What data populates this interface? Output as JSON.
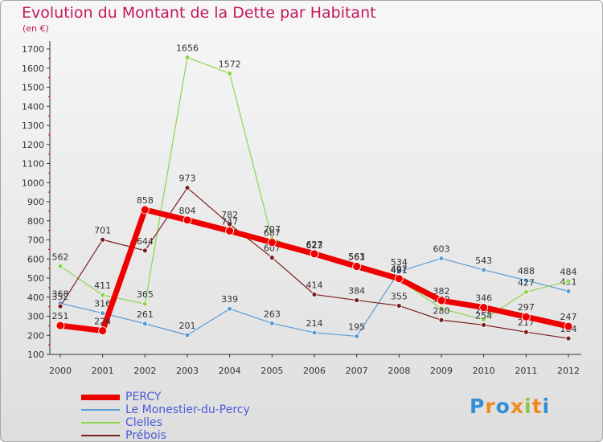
{
  "chart_data": {
    "type": "line",
    "title": "Evolution du Montant de la Dette par Habitant",
    "subtitle": "(en €)",
    "x": [
      "2000",
      "2001",
      "2002",
      "2003",
      "2004",
      "2005",
      "2006",
      "2007",
      "2008",
      "2009",
      "2010",
      "2011",
      "2012"
    ],
    "ylim": [
      100,
      1700
    ],
    "yticks": [
      100,
      200,
      300,
      400,
      500,
      600,
      700,
      800,
      900,
      1000,
      1100,
      1200,
      1300,
      1400,
      1500,
      1600,
      1700
    ],
    "grid": false,
    "legend_position": "bottom-left",
    "series": [
      {
        "name": "Le Monestier-du-Percy",
        "color": "#5b9bd5",
        "width": 1.2,
        "values": [
          368,
          316,
          261,
          201,
          339,
          263,
          214,
          195,
          534,
          603,
          543,
          488,
          431
        ]
      },
      {
        "name": "Clelles",
        "color": "#8cd64b",
        "width": 1.2,
        "values": [
          562,
          411,
          365,
          1656,
          1572,
          707,
          623,
          563,
          491,
          340,
          282,
          427,
          484
        ]
      },
      {
        "name": "Prébois",
        "color": "#7a1f1f",
        "width": 1.2,
        "values": [
          352,
          701,
          644,
          973,
          782,
          607,
          414,
          384,
          355,
          280,
          254,
          217,
          184
        ]
      },
      {
        "name": "PERCY",
        "color": "#ee0000",
        "width": 7,
        "values": [
          251,
          224,
          858,
          804,
          747,
          687,
          627,
          561,
          497,
          382,
          346,
          297,
          247
        ]
      }
    ]
  },
  "legend_order": [
    "PERCY",
    "Le Monestier-du-Percy",
    "Clelles",
    "Prébois"
  ],
  "logo": {
    "letters": [
      "P",
      "r",
      "o",
      "x",
      "i",
      "t",
      "i"
    ]
  }
}
